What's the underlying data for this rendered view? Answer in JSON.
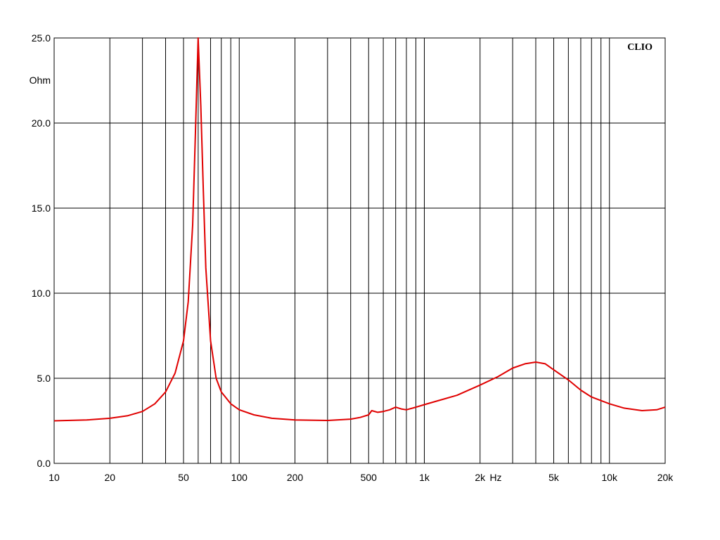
{
  "chart_data": {
    "type": "line",
    "brand": "CLIO",
    "ylabel": "Ohm",
    "xlabel": "Hz",
    "x_scale": "log",
    "xlim": [
      10,
      20000
    ],
    "ylim": [
      0,
      25
    ],
    "grid": true,
    "line_color": "#e00000",
    "y_ticks": [
      {
        "value": 0,
        "label": "0.0"
      },
      {
        "value": 5,
        "label": "5.0"
      },
      {
        "value": 10,
        "label": "10.0"
      },
      {
        "value": 15,
        "label": "15.0"
      },
      {
        "value": 20,
        "label": "20.0"
      },
      {
        "value": 25,
        "label": "25.0"
      }
    ],
    "x_ticks": [
      {
        "value": 10,
        "label": "10"
      },
      {
        "value": 20,
        "label": "20"
      },
      {
        "value": 50,
        "label": "50"
      },
      {
        "value": 100,
        "label": "100"
      },
      {
        "value": 200,
        "label": "200"
      },
      {
        "value": 500,
        "label": "500"
      },
      {
        "value": 1000,
        "label": "1k"
      },
      {
        "value": 2000,
        "label": "2k"
      },
      {
        "value": 5000,
        "label": "5k"
      },
      {
        "value": 10000,
        "label": "10k"
      },
      {
        "value": 20000,
        "label": "20k"
      }
    ],
    "x_gridlines": [
      10,
      20,
      30,
      40,
      50,
      60,
      70,
      80,
      90,
      100,
      200,
      300,
      400,
      500,
      600,
      700,
      800,
      900,
      1000,
      2000,
      3000,
      4000,
      5000,
      6000,
      7000,
      8000,
      9000,
      10000,
      20000
    ],
    "series": [
      {
        "x": [
          10,
          15,
          20,
          25,
          30,
          35,
          40,
          45,
          50,
          53,
          56,
          58,
          60,
          62,
          64,
          66,
          70,
          75,
          80,
          90,
          100,
          120,
          150,
          200,
          300,
          400,
          450,
          500,
          520,
          560,
          600,
          650,
          700,
          750,
          800,
          900,
          1000,
          1200,
          1500,
          2000,
          2500,
          3000,
          3500,
          4000,
          4500,
          5000,
          6000,
          7000,
          8000,
          10000,
          12000,
          15000,
          18000,
          20000
        ],
        "y": [
          2.5,
          2.55,
          2.65,
          2.8,
          3.05,
          3.5,
          4.2,
          5.3,
          7.2,
          9.5,
          14.0,
          19.5,
          25.0,
          21.0,
          16.0,
          11.5,
          7.2,
          5.0,
          4.2,
          3.5,
          3.15,
          2.85,
          2.65,
          2.55,
          2.52,
          2.6,
          2.7,
          2.85,
          3.1,
          3.0,
          3.05,
          3.15,
          3.3,
          3.2,
          3.15,
          3.3,
          3.45,
          3.7,
          4.0,
          4.6,
          5.1,
          5.6,
          5.85,
          5.95,
          5.85,
          5.5,
          4.9,
          4.3,
          3.9,
          3.5,
          3.25,
          3.1,
          3.15,
          3.3
        ]
      }
    ]
  }
}
